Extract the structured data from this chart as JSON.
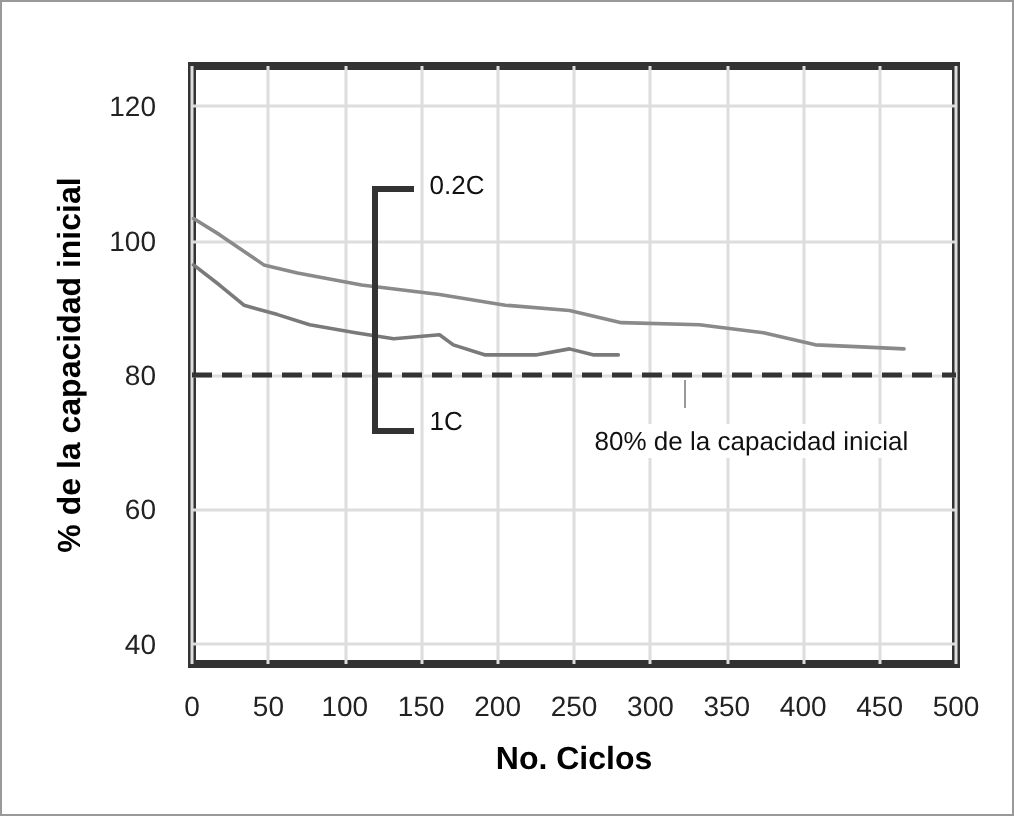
{
  "chart_data": {
    "type": "line",
    "xlabel": "No. Ciclos",
    "ylabel": "% de la capacidad inicial",
    "xlim": [
      0,
      500
    ],
    "xticks": [
      0,
      50,
      100,
      150,
      200,
      250,
      300,
      350,
      400,
      450,
      500
    ],
    "ylim": [
      37,
      126
    ],
    "yticks": [
      40,
      60,
      80,
      100,
      120
    ],
    "grid": true,
    "marker": "none",
    "line_style": "solid",
    "series": [
      {
        "color": "#8a8a8a",
        "x": [
          1,
          18,
          47,
          69,
          111,
          162,
          205,
          247,
          281,
          332,
          374,
          408,
          438,
          466
        ],
        "values": [
          103.3,
          100.9,
          96.4,
          95.2,
          93.4,
          92,
          90.4,
          89.6,
          87.8,
          87.5,
          86.3,
          84.5,
          84.2,
          83.9
        ]
      },
      {
        "color": "#7a7a7a",
        "x": [
          1,
          18,
          34,
          56,
          77,
          107,
          132,
          162,
          171,
          192,
          225,
          247,
          263,
          279
        ],
        "values": [
          96.4,
          93.4,
          90.4,
          89,
          87.5,
          86.3,
          85.4,
          86,
          84.5,
          83,
          83,
          83.9,
          83,
          83
        ]
      }
    ],
    "annotations": [
      "0.2C",
      "1C"
    ],
    "ref_lines": [
      {
        "axis": "y",
        "value": 80,
        "label": "80% de la capacidad inicial",
        "color": "#333333",
        "line_style": "dashed"
      }
    ]
  }
}
